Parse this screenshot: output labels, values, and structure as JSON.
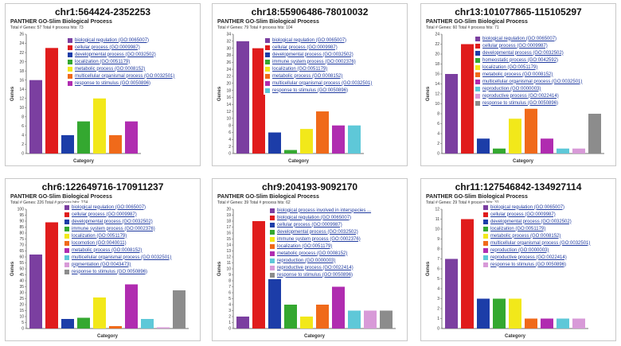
{
  "chart_data": [
    {
      "type": "bar",
      "region": "chr1:564424-2352253",
      "title": "PANTHER GO-Slim Biological Process",
      "stats": "Total # Genes: 57   Total # process hits: 73",
      "ylabel": "Genes",
      "xlabel": "Category",
      "ylim": [
        0,
        26
      ],
      "yticks": [
        0,
        2,
        4,
        6,
        8,
        10,
        12,
        14,
        16,
        18,
        20,
        22,
        24,
        26
      ],
      "categories": [
        "biological regulation (GO:0065007)",
        "cellular process (GO:0009987)",
        "developmental process (GO:0032502)",
        "localization (GO:0051179)",
        "metabolic process (GO:0008152)",
        "multicellular organismal process (GO:0032501)",
        "response to stimulus (GO:0050896)"
      ],
      "values": [
        16,
        23,
        4,
        7,
        12,
        4,
        7
      ],
      "colors": [
        "#7b3fa0",
        "#e01c1c",
        "#1c3da8",
        "#34a830",
        "#f2e81a",
        "#f06a1a",
        "#b02cb0"
      ]
    },
    {
      "type": "bar",
      "region": "chr18:55906486-78010032",
      "title": "PANTHER GO-Slim Biological Process",
      "stats": "Total # Genes: 79   Total # process hits: 104",
      "ylabel": "Genes",
      "xlabel": "Category",
      "ylim": [
        0,
        34
      ],
      "yticks": [
        0,
        2,
        4,
        6,
        8,
        10,
        12,
        14,
        16,
        18,
        20,
        22,
        24,
        26,
        28,
        30,
        32,
        34
      ],
      "categories": [
        "biological regulation (GO:0065007)",
        "cellular process (GO:0009987)",
        "developmental process (GO:0032502)",
        "immune system process (GO:0002376)",
        "localization (GO:0051179)",
        "metabolic process (GO:0008152)",
        "multicellular organismal process (GO:0032501)",
        "response to stimulus (GO:0050896)"
      ],
      "values": [
        32,
        30,
        6,
        1,
        7,
        12,
        8,
        8
      ],
      "colors": [
        "#7b3fa0",
        "#e01c1c",
        "#1c3da8",
        "#34a830",
        "#f2e81a",
        "#f06a1a",
        "#b02cb0",
        "#5ec8d8"
      ]
    },
    {
      "type": "bar",
      "region": "chr13:101077865-115105297",
      "title": "PANTHER GO-Slim Biological Process",
      "stats": "Total # Genes: 60   Total # process hits: 71",
      "ylabel": "Genes",
      "xlabel": "Category",
      "ylim": [
        0,
        24
      ],
      "yticks": [
        0,
        2,
        4,
        6,
        8,
        10,
        12,
        14,
        16,
        18,
        20,
        22,
        24
      ],
      "categories": [
        "biological regulation (GO:0065007)",
        "cellular process (GO:0009987)",
        "developmental process (GO:0032502)",
        "homeostatic process (GO:0042592)",
        "localization (GO:0051179)",
        "metabolic process (GO:0008152)",
        "multicellular organismal process (GO:0032501)",
        "reproduction (GO:0000003)",
        "reproductive process (GO:0022414)",
        "response to stimulus (GO:0050896)"
      ],
      "values": [
        16,
        22,
        3,
        1,
        7,
        9,
        3,
        1,
        1,
        8
      ],
      "colors": [
        "#7b3fa0",
        "#e01c1c",
        "#1c3da8",
        "#34a830",
        "#f2e81a",
        "#f06a1a",
        "#b02cb0",
        "#5ec8d8",
        "#d89ad8",
        "#8c8c8c"
      ]
    },
    {
      "type": "bar",
      "region": "chr6:122649716-170911237",
      "title": "PANTHER GO-Slim Biological Process",
      "stats": "Total # Genes: 226   Total # process hits: 274",
      "ylabel": "Genes",
      "xlabel": "Category",
      "ylim": [
        0,
        100
      ],
      "yticks": [
        0,
        5,
        10,
        15,
        20,
        25,
        30,
        35,
        40,
        45,
        50,
        55,
        60,
        65,
        70,
        75,
        80,
        85,
        90,
        95,
        100
      ],
      "categories": [
        "biological regulation (GO:0065007)",
        "cellular process (GO:0009987)",
        "developmental process (GO:0032502)",
        "immune system process (GO:0002376)",
        "localization (GO:0051179)",
        "locomotion (GO:0040011)",
        "metabolic process (GO:0008152)",
        "multicellular organismal process (GO:0032501)",
        "pigmentation (GO:0043473)",
        "response to stimulus (GO:0050896)"
      ],
      "values": [
        62,
        89,
        8,
        9,
        26,
        2,
        37,
        8,
        1,
        32
      ],
      "colors": [
        "#7b3fa0",
        "#e01c1c",
        "#1c3da8",
        "#34a830",
        "#f2e81a",
        "#f06a1a",
        "#b02cb0",
        "#5ec8d8",
        "#d89ad8",
        "#8c8c8c"
      ]
    },
    {
      "type": "bar",
      "region": "chr9:204193-9092170",
      "title": "PANTHER GO-Slim Biological Process",
      "stats": "Total # Genes: 39   Total # process hits: 62",
      "ylabel": "Genes",
      "xlabel": "Category",
      "ylim": [
        0,
        20
      ],
      "yticks": [
        0,
        1,
        2,
        3,
        4,
        5,
        6,
        7,
        8,
        9,
        10,
        11,
        12,
        13,
        14,
        15,
        16,
        17,
        18,
        19,
        20
      ],
      "categories": [
        "biological process involved in interspecies ...",
        "biological regulation (GO:0065007)",
        "cellular process (GO:0009987)",
        "developmental process (GO:0032502)",
        "immune system process (GO:0002376)",
        "localization (GO:0051179)",
        "metabolic process (GO:0008152)",
        "reproduction (GO:0000003)",
        "reproductive process (GO:0022414)",
        "response to stimulus (GO:0050896)"
      ],
      "values": [
        2,
        18,
        16,
        4,
        2,
        4,
        7,
        3,
        3,
        3
      ],
      "colors": [
        "#7b3fa0",
        "#e01c1c",
        "#1c3da8",
        "#34a830",
        "#f2e81a",
        "#f06a1a",
        "#b02cb0",
        "#5ec8d8",
        "#d89ad8",
        "#8c8c8c"
      ]
    },
    {
      "type": "bar",
      "region": "chr11:127546842-134927114",
      "title": "PANTHER GO-Slim Biological Process",
      "stats": "Total # Genes: 29   Total # process hits: 31",
      "ylabel": "Genes",
      "xlabel": "Category",
      "ylim": [
        0,
        12
      ],
      "yticks": [
        0,
        1,
        2,
        3,
        4,
        5,
        6,
        7,
        8,
        9,
        10,
        11,
        12
      ],
      "categories": [
        "biological regulation (GO:0065007)",
        "cellular process (GO:0009987)",
        "developmental process (GO:0032502)",
        "localization (GO:0051179)",
        "metabolic process (GO:0008152)",
        "multicellular organismal process (GO:0032501)",
        "reproduction (GO:0000003)",
        "reproductive process (GO:0022414)",
        "response to stimulus (GO:0050896)"
      ],
      "values": [
        7,
        11,
        3,
        3,
        3,
        1,
        1,
        1,
        1
      ],
      "colors": [
        "#7b3fa0",
        "#e01c1c",
        "#1c3da8",
        "#34a830",
        "#f2e81a",
        "#f06a1a",
        "#b02cb0",
        "#5ec8d8",
        "#d89ad8"
      ]
    }
  ]
}
